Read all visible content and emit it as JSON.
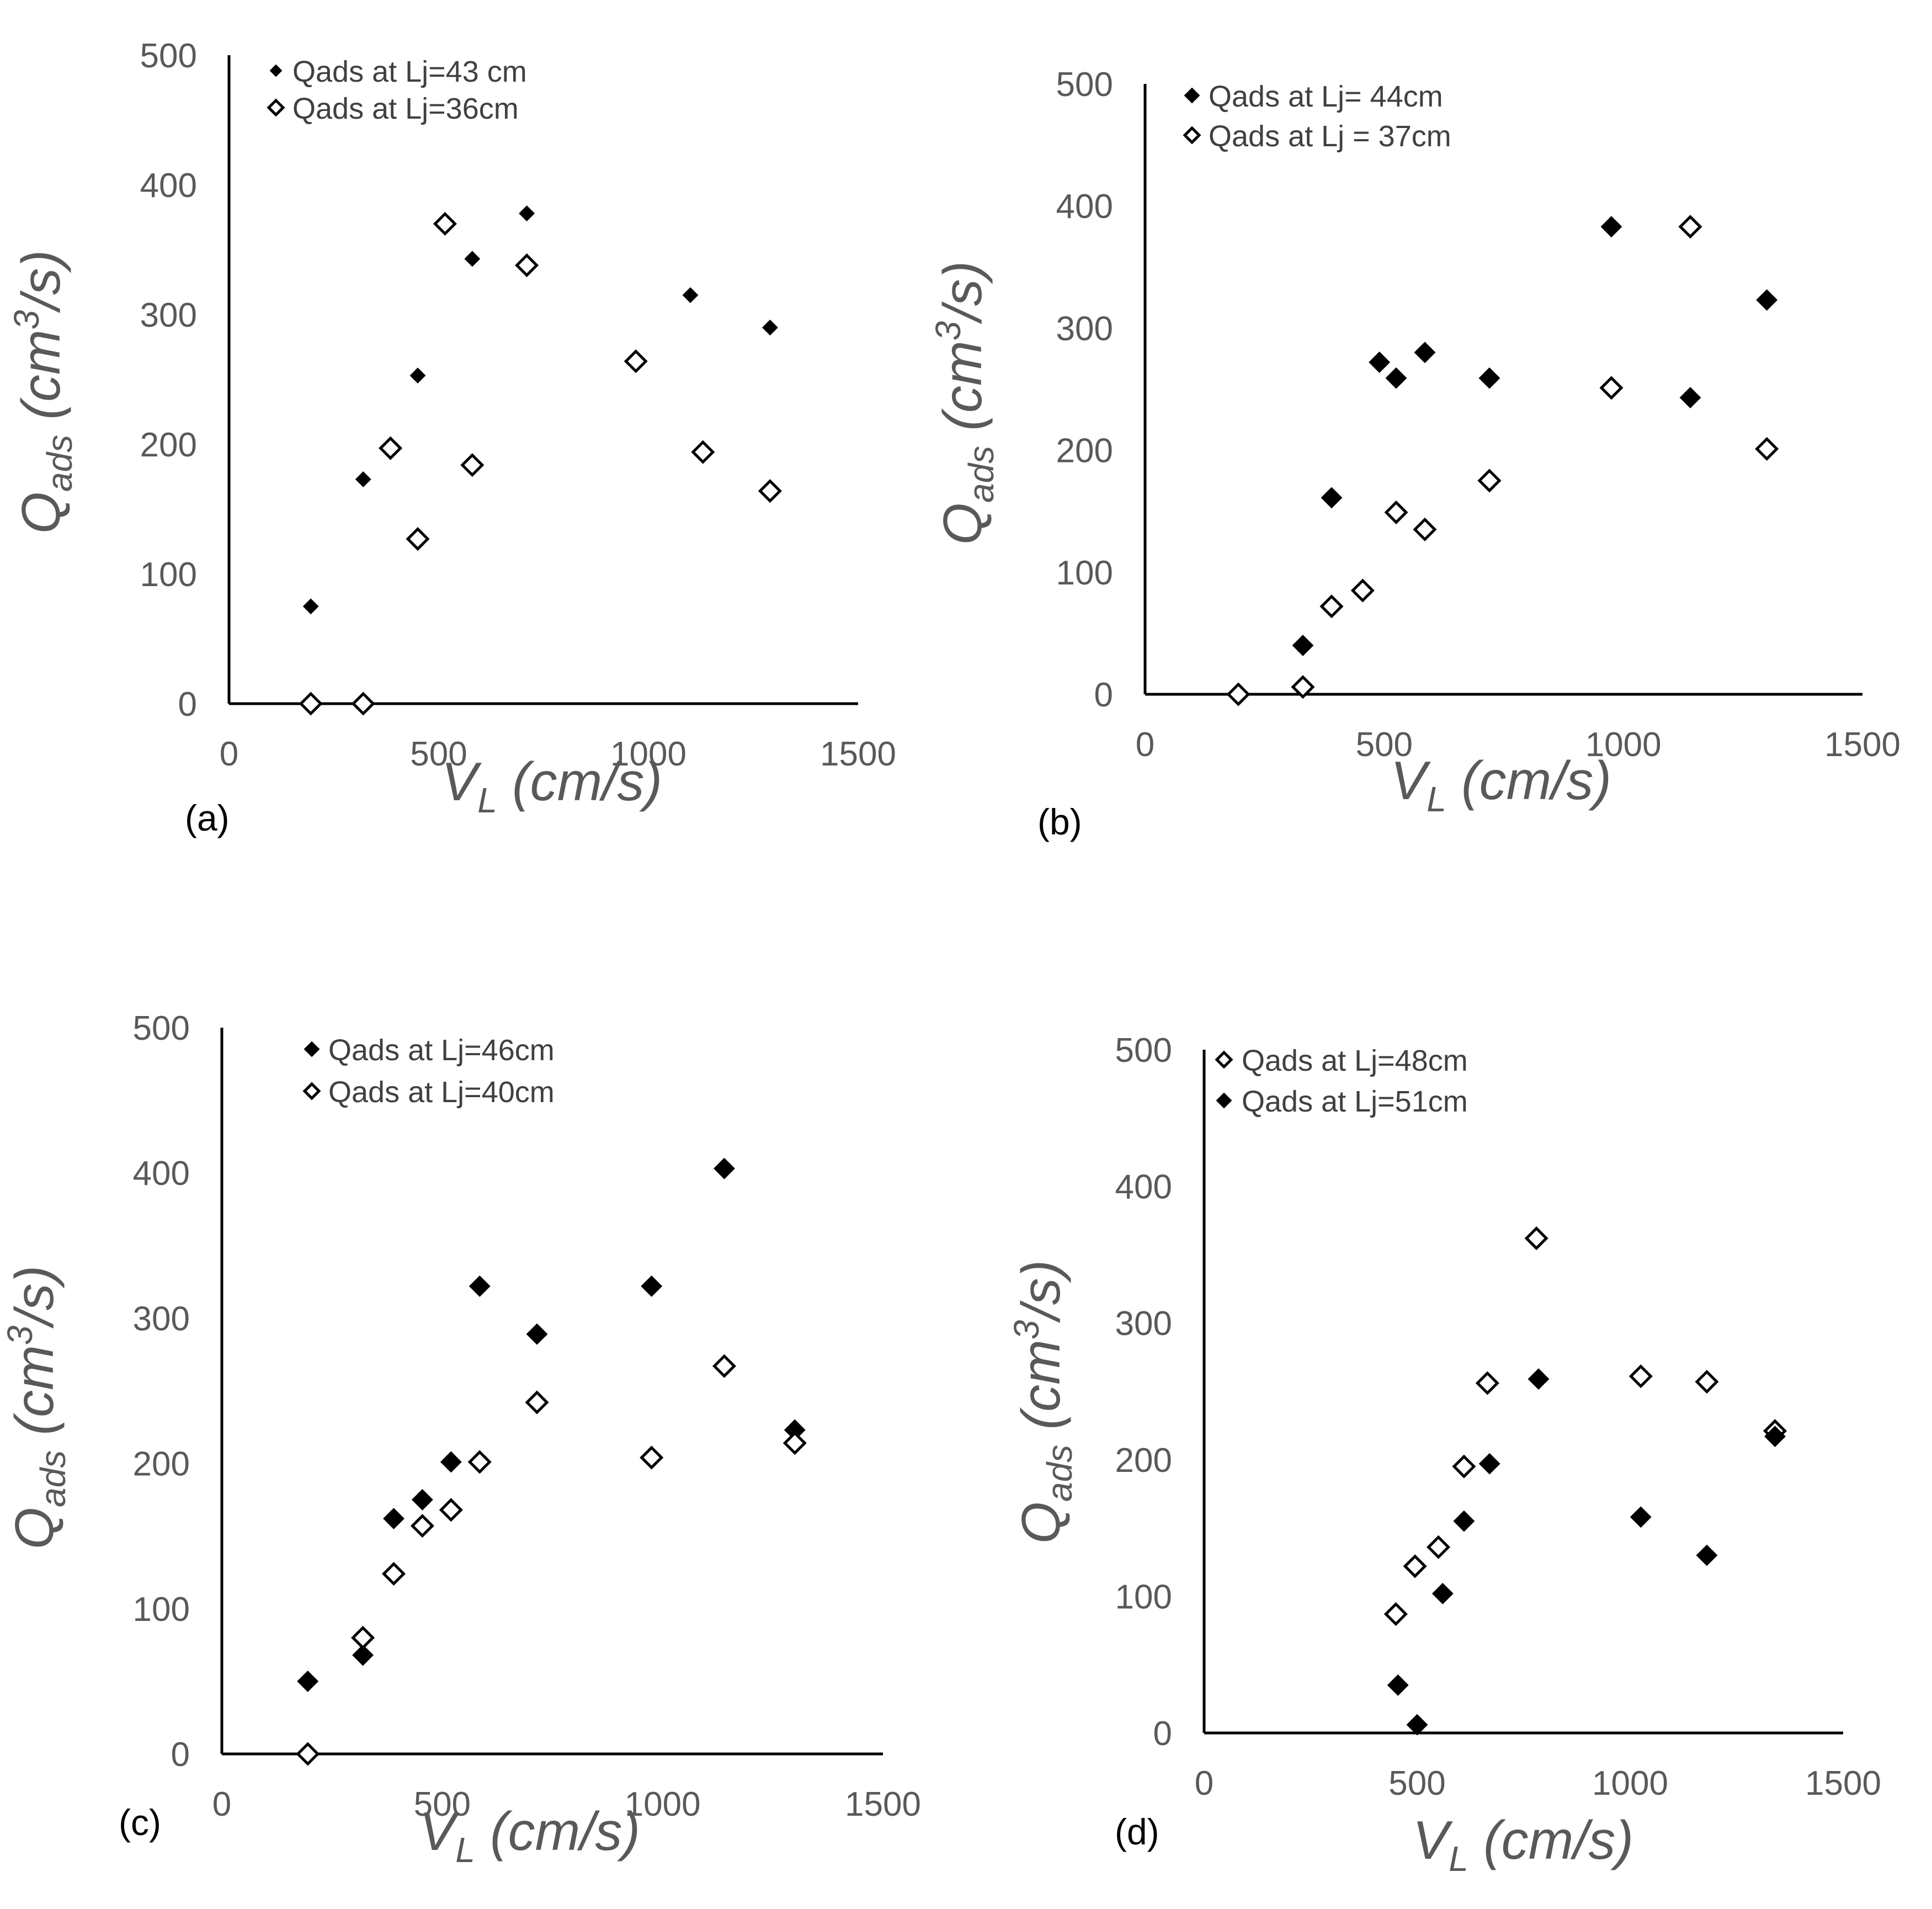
{
  "colors": {
    "filled": "#000000",
    "open_stroke": "#000000",
    "open_fill": "#ffffff",
    "text": "#595959"
  },
  "chart_data": [
    {
      "type": "scatter",
      "panel_label": "(a)",
      "xlabel": {
        "main": "V",
        "sub": "L",
        "unit": " (cm/s)"
      },
      "ylabel": {
        "main": "Q",
        "sub": "ads",
        "unit_pre": " (cm",
        "unit_sup": "3",
        "unit_post": "/s)"
      },
      "xlim": [
        0,
        1500
      ],
      "ylim": [
        0,
        500
      ],
      "xticks": [
        "0",
        "500",
        "1000",
        "1500"
      ],
      "yticks": [
        "0",
        "100",
        "200",
        "300",
        "400",
        "500"
      ],
      "legend": [
        "Qads at Lj=43 cm",
        "Qads at Lj=36cm"
      ],
      "series": [
        {
          "name": "Qads at Lj=43 cm",
          "marker": "filled",
          "size": "small",
          "x": [
            195,
            320,
            450,
            580,
            710,
            1100,
            1290
          ],
          "y": [
            75,
            173,
            253,
            343,
            378,
            315,
            290
          ]
        },
        {
          "name": "Qads at Lj=36cm",
          "marker": "open",
          "size": "normal",
          "x": [
            195,
            320,
            385,
            450,
            515,
            580,
            710,
            970,
            1130,
            1290
          ],
          "y": [
            0,
            0,
            197,
            127,
            370,
            184,
            338,
            264,
            194,
            164
          ]
        }
      ]
    },
    {
      "type": "scatter",
      "panel_label": "(b)",
      "xlabel": {
        "main": "V",
        "sub": "L",
        "unit": " (cm/s)"
      },
      "ylabel": {
        "main": "Q",
        "sub": "ads",
        "unit_pre": " (cm",
        "unit_sup": "3",
        "unit_post": "/s)"
      },
      "xlim": [
        0,
        1500
      ],
      "ylim": [
        0,
        500
      ],
      "xticks": [
        "0",
        "500",
        "1000",
        "1500"
      ],
      "yticks": [
        "0",
        "100",
        "200",
        "300",
        "400",
        "500"
      ],
      "legend": [
        "Qads at Lj= 44cm",
        "Qads at Lj = 37cm"
      ],
      "series": [
        {
          "name": "Qads at Lj= 44cm",
          "marker": "filled",
          "size": "normal",
          "x": [
            330,
            390,
            490,
            525,
            585,
            720,
            975,
            1140,
            1300
          ],
          "y": [
            40,
            161,
            272,
            259,
            280,
            259,
            383,
            243,
            323
          ]
        },
        {
          "name": "Qads at Lj = 37cm",
          "marker": "open",
          "size": "normal",
          "x": [
            195,
            330,
            390,
            455,
            525,
            585,
            720,
            975,
            1140,
            1300
          ],
          "y": [
            0,
            6,
            72,
            85,
            149,
            135,
            175,
            251,
            383,
            201
          ]
        }
      ]
    },
    {
      "type": "scatter",
      "panel_label": "(c)",
      "xlabel": {
        "main": "V",
        "sub": "L",
        "unit": " (cm/s)"
      },
      "ylabel": {
        "main": "Q",
        "sub": "ads",
        "unit_pre": " (cm",
        "unit_sup": "3",
        "unit_post": "/s)"
      },
      "xlim": [
        0,
        1500
      ],
      "ylim": [
        0,
        500
      ],
      "xticks": [
        "0",
        "500",
        "1000",
        "1500"
      ],
      "yticks": [
        "0",
        "100",
        "200",
        "300",
        "400",
        "500"
      ],
      "legend": [
        "Qads at Lj=46cm",
        "Qads at Lj=40cm"
      ],
      "series": [
        {
          "name": "Qads at Lj=46cm",
          "marker": "filled",
          "size": "normal",
          "x": [
            195,
            320,
            390,
            455,
            520,
            585,
            715,
            975,
            1140,
            1300
          ],
          "y": [
            50,
            68,
            162,
            175,
            201,
            322,
            289,
            322,
            403,
            223
          ]
        },
        {
          "name": "Qads at Lj=40cm",
          "marker": "open",
          "size": "normal",
          "x": [
            195,
            320,
            390,
            455,
            520,
            585,
            715,
            975,
            1140,
            1300
          ],
          "y": [
            0,
            80,
            124,
            157,
            168,
            201,
            242,
            204,
            267,
            214
          ]
        }
      ]
    },
    {
      "type": "scatter",
      "panel_label": "(d)",
      "xlabel": {
        "main": "V",
        "sub": "L",
        "unit": "  (cm/s)"
      },
      "ylabel": {
        "main": "Q",
        "sub": "ads",
        "unit_pre": " (cm",
        "unit_sup": "3",
        "unit_post": "/s)"
      },
      "xlim": [
        0,
        1500
      ],
      "ylim": [
        0,
        500
      ],
      "xticks": [
        "0",
        "500",
        "1000",
        "1500"
      ],
      "yticks": [
        "0",
        "100",
        "200",
        "300",
        "400",
        "500"
      ],
      "legend": [
        "Qads at Lj=48cm",
        "Qads at Lj=51cm"
      ],
      "series": [
        {
          "name": "Qads at Lj=48cm",
          "marker": "open",
          "size": "normal",
          "x": [
            450,
            495,
            550,
            610,
            665,
            780,
            1025,
            1180,
            1340
          ],
          "y": [
            87,
            122,
            136,
            195,
            256,
            362,
            261,
            257,
            221
          ]
        },
        {
          "name": "Qads at Lj=51cm",
          "marker": "filled",
          "size": "normal",
          "x": [
            455,
            500,
            560,
            610,
            670,
            785,
            1025,
            1180,
            1340
          ],
          "y": [
            35,
            6,
            102,
            155,
            197,
            259,
            158,
            130,
            217
          ]
        }
      ]
    }
  ]
}
